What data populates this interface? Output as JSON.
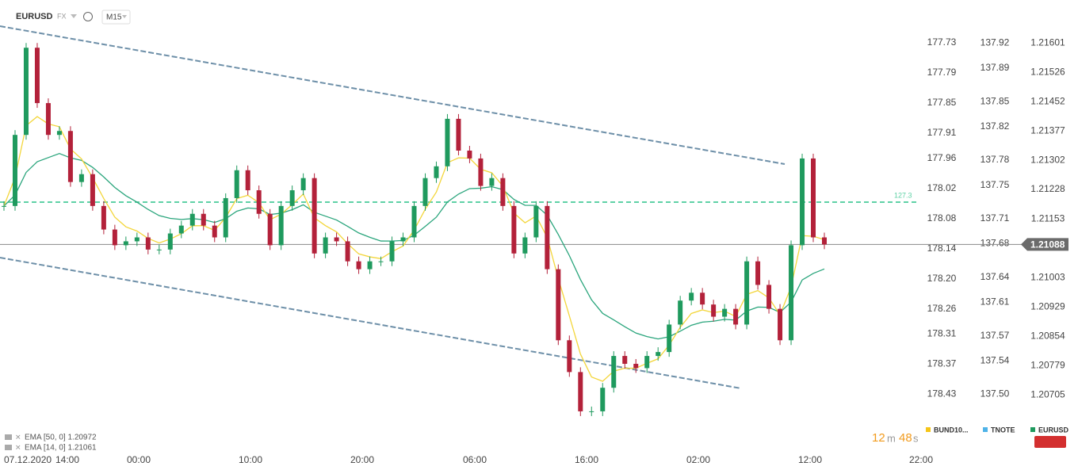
{
  "header": {
    "symbol": "EURUSD",
    "market": "FX",
    "interval": "M15"
  },
  "chart_data": {
    "type": "candlestick",
    "series": [
      {
        "name": "EURUSD",
        "up_color": "#1f9a5e",
        "down_color": "#b3213a",
        "values": [
          1.21186,
          1.21367,
          1.21589,
          1.21448,
          1.21367,
          1.21377,
          1.21247,
          1.21267,
          1.21186,
          1.21126,
          1.21086,
          1.21096,
          1.21106,
          1.21075,
          1.21075,
          1.21116,
          1.21136,
          1.21166,
          1.21136,
          1.21106,
          1.21206,
          1.21277,
          1.21226,
          1.21166,
          1.21086,
          1.21186,
          1.21226,
          1.21257,
          1.21065,
          1.21106,
          1.21096,
          1.21045,
          1.21025,
          1.21045,
          1.21045,
          1.21096,
          1.21106,
          1.21186,
          1.21257,
          1.21287,
          1.21408,
          1.21327,
          1.21307,
          1.21237,
          1.21257,
          1.21186,
          1.21065,
          1.21106,
          1.21186,
          1.21025,
          1.20844,
          1.20763,
          1.20663,
          1.20663,
          1.20723,
          1.20804,
          1.20784,
          1.20773,
          1.20804,
          1.20814,
          1.20884,
          1.20945,
          1.20965,
          1.20935,
          1.20904,
          1.20924,
          1.20884,
          1.21045,
          1.20985,
          1.20924,
          1.20844,
          1.21086,
          1.21307,
          1.21106,
          1.21088
        ]
      }
    ],
    "ylim": [
      1.2057,
      1.2165
    ],
    "yticks": [
      1.21601,
      1.21526,
      1.21452,
      1.21377,
      1.21302,
      1.21228,
      1.21153,
      1.21088,
      1.21003,
      1.20929,
      1.20854,
      1.20779,
      1.20705
    ],
    "y2lim": [
      137.436,
      137.943
    ],
    "y2ticks": [
      137.92,
      137.89,
      137.85,
      137.82,
      137.78,
      137.75,
      137.71,
      137.68,
      137.64,
      137.61,
      137.57,
      137.54,
      {
        "value": 137.5,
        "label": "137.50"
      }
    ],
    "y3lim": [
      178.537,
      177.692
    ],
    "y3ticks": [
      177.73,
      177.79,
      177.85,
      177.91,
      177.96,
      178.02,
      178.08,
      178.14,
      {
        "value": 178.2,
        "label": "178.20"
      },
      178.26,
      178.31,
      178.37,
      178.43
    ],
    "current_price": 1.21088,
    "level_label": "127.3",
    "xlabels": [
      "07.12.2020",
      "14:00",
      "00:00",
      "10:00",
      "20:00",
      "06:00",
      "16:00",
      "02:00",
      "12:00",
      "22:00"
    ],
    "indicators": [
      "EMA [50, 0] 1.20972",
      "EMA [14, 0] 1.21061"
    ],
    "legend": [
      {
        "name": "BUND10...",
        "color": "#f5c518"
      },
      {
        "name": "TNOTE",
        "color": "#4fb3e8"
      },
      {
        "name": "EURUSD",
        "color": "#1f9a5e"
      }
    ]
  },
  "timer": {
    "minutes": "12",
    "minutes_unit": "m",
    "seconds": "48",
    "seconds_unit": "s"
  }
}
